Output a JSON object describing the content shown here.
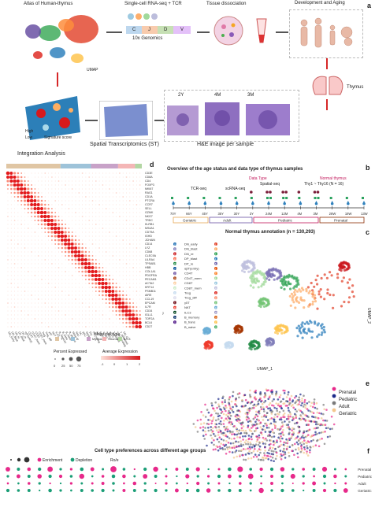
{
  "panel_labels": [
    "a",
    "b",
    "c",
    "d",
    "e",
    "f"
  ],
  "panel_a": {
    "steps": [
      {
        "id": "development",
        "label": "Development and Aging"
      },
      {
        "id": "tissue",
        "label": "Tissue dissociation"
      },
      {
        "id": "scrna",
        "label": "Single-cell RNA-seq + TCR"
      },
      {
        "id": "genomics",
        "label": "10x Genomics"
      },
      {
        "id": "atlas",
        "label": "Atlas of Human-thymus"
      },
      {
        "id": "thymus",
        "label": "Thymus"
      },
      {
        "id": "he",
        "label": "H&E image per sample"
      },
      {
        "id": "st",
        "label": "Spatial Transcriptomics (ST)"
      },
      {
        "id": "integration",
        "label": "Integration Analysis"
      }
    ],
    "he_ages": [
      "3M",
      "4M",
      "2Y"
    ],
    "vdj": [
      "C",
      "J",
      "D",
      "V"
    ],
    "umap_tag": "UMAP",
    "st_legend": {
      "title": "Signature score",
      "low": "Low",
      "high": "High"
    }
  },
  "panel_b": {
    "title": "Overview of the age status and data type of thymus samples",
    "legend": {
      "normal_thymus_title": "Normal thymus",
      "normal_thymus_note": "Thy1 ~ Thy16 (N = 16)",
      "data_type_title": "Data Type",
      "types": [
        "Spatial-seq",
        "scRNA-seq",
        "TCR-seq"
      ]
    },
    "age_groups": [
      "Prenatal",
      "Pediatric",
      "Adult",
      "Geriatric"
    ],
    "ticks": [
      "13W",
      "19W",
      "28W",
      "3M",
      "4M",
      "12M",
      "24M",
      "3Y",
      "30Y",
      "35Y",
      "45Y",
      "66Y",
      "70Y"
    ],
    "sample_spatial_counts": [
      0,
      0,
      0,
      2,
      1,
      2,
      2,
      1,
      0,
      0,
      0,
      0,
      0
    ],
    "sample_sc_counts": [
      1,
      1,
      1,
      2,
      1,
      2,
      2,
      1,
      1,
      1,
      1,
      1,
      1
    ],
    "sample_tcr_counts": [
      1,
      1,
      1,
      1,
      1,
      1,
      1,
      1,
      1,
      1,
      1,
      1,
      1
    ]
  },
  "panel_c": {
    "title": "Normal thymus annotation (n = 130,293)",
    "axis_x": "UMAP_1",
    "axis_y": "UMAP_2",
    "clusters": [
      {
        "n": "1",
        "name": "DN_early"
      },
      {
        "n": "2",
        "name": "DN_blast"
      },
      {
        "n": "3",
        "name": "DN_re"
      },
      {
        "n": "4",
        "name": "DP_blast"
      },
      {
        "n": "5",
        "name": "DP_re"
      },
      {
        "n": "6",
        "name": "αβT(entry)"
      },
      {
        "n": "7",
        "name": "CD4T"
      },
      {
        "n": "8",
        "name": "CD4T_mem"
      },
      {
        "n": "9",
        "name": "CD8T"
      },
      {
        "n": "10",
        "name": "CD8T_mem"
      },
      {
        "n": "11",
        "name": "Treg"
      },
      {
        "n": "12",
        "name": "Treg_diff"
      },
      {
        "n": "13",
        "name": "γδT"
      },
      {
        "n": "14",
        "name": "NKT"
      },
      {
        "n": "15",
        "name": "ILC3"
      },
      {
        "n": "16",
        "name": "B_memory"
      },
      {
        "n": "17",
        "name": "B_trans"
      },
      {
        "n": "18",
        "name": "B_naive"
      },
      {
        "n": "19",
        "name": "B_plasma"
      },
      {
        "n": "20",
        "name": "Mono"
      },
      {
        "n": "21",
        "name": "Mac"
      },
      {
        "n": "22",
        "name": "DC"
      },
      {
        "n": "23",
        "name": "pDC"
      },
      {
        "n": "24",
        "name": "Mast"
      },
      {
        "n": "25",
        "name": "Ery"
      },
      {
        "n": "26",
        "name": "Fb_cycling"
      },
      {
        "n": "27",
        "name": "Fb"
      },
      {
        "n": "28",
        "name": "Endo"
      },
      {
        "n": "29",
        "name": "VSMC"
      },
      {
        "n": "30",
        "name": "mTEC"
      },
      {
        "n": "31",
        "name": "cTEC"
      },
      {
        "n": "32",
        "name": "T_agonist"
      },
      {
        "n": "33",
        "name": "T_proliferating"
      },
      {
        "n": "34",
        "name": "T_apoptosis"
      },
      {
        "n": "35",
        "name": "DN_Q"
      }
    ],
    "colors": [
      "#e34a33",
      "#fdae6b",
      "#31a354",
      "#3182bd",
      "#756bb1",
      "#e6550d",
      "#fd8d3c",
      "#a1d99b",
      "#9ecae1",
      "#bcbddc",
      "#de2d26",
      "#fc9272",
      "#74c476",
      "#6baed6",
      "#9e9ac8",
      "#d95f0e",
      "#fec44f",
      "#41ab5d",
      "#2171b5",
      "#807dba",
      "#cb181d",
      "#fb6a4a",
      "#238b45",
      "#08519c",
      "#6a51a3",
      "#a63603",
      "#fdd0a2",
      "#c7e9c0",
      "#c6dbef",
      "#dadaeb",
      "#67000d",
      "#ef3b2c",
      "#00441b",
      "#08306b",
      "#3f007d"
    ]
  },
  "panel_d": {
    "genes": [
      "CD3E",
      "CD8A",
      "CD4",
      "FOXP3",
      "MKI67",
      "RAG1",
      "CD1A",
      "PTCRA",
      "CCR7",
      "SELL",
      "GZMK",
      "NKG7",
      "TRDC",
      "KLRB1",
      "MS4A1",
      "CD79A",
      "IGHD",
      "JCHAIN",
      "CD14",
      "LYZ",
      "CD68",
      "CLEC9A",
      "LILRA4",
      "TPSAB1",
      "HBB",
      "COL1A1",
      "PDGFRA",
      "PECAM1",
      "ACTA2",
      "KRT14",
      "PSMB11",
      "AIRE",
      "CCL19",
      "EPCAM",
      "IL7R",
      "CD34",
      "IGLL1",
      "TOP2A",
      "BCL6",
      "CD27"
    ],
    "major_type_title": "Major cell type",
    "major_types": [
      "T",
      "B",
      "Myeloid",
      "Stromal",
      "ILC3"
    ],
    "major_colors": [
      "#e0c6a4",
      "#9ec3d9",
      "#c8a2c8",
      "#f4b6b6",
      "#b3d6a3"
    ],
    "legend_pct_title": "Percent Expressed",
    "legend_pct": [
      "0",
      "25",
      "50",
      "75"
    ],
    "legend_expr_title": "Average Expression",
    "legend_expr_ticks": [
      "-1",
      "0",
      "1",
      "2"
    ]
  },
  "panel_e": {
    "legend": [
      "Prenatal",
      "Pediatric",
      "Adult",
      "Geriatric"
    ],
    "colors": [
      "#e7298a",
      "#1b2a8a",
      "#7a7a7a",
      "#f3c68d"
    ]
  },
  "panel_f": {
    "title": "Cell type preferences across different age groups",
    "legend_title": "Ro/e",
    "legend_items": [
      "Depletion",
      "Enrichment"
    ],
    "legend_colors": [
      "#1b9e77",
      "#e7298a"
    ],
    "size_ticks": [
      "1",
      "2",
      "3"
    ],
    "rows": [
      "Prenatal",
      "Pediatric",
      "Adult",
      "Geriatric"
    ],
    "matrix": [
      [
        2.2,
        0.4,
        1.8,
        0.3,
        2.5,
        0.6,
        1.4,
        0.2,
        1.9,
        0.7,
        2.8,
        0.5,
        1.1,
        0.3,
        2.4,
        0.8,
        1.6,
        0.4,
        2.0,
        0.9,
        1.3,
        0.2,
        2.6,
        0.5,
        1.7,
        0.3,
        2.1,
        0.6,
        1.5,
        0.4,
        2.3,
        0.7,
        1.2
      ],
      [
        0.6,
        1.9,
        0.4,
        2.1,
        0.3,
        1.7,
        0.5,
        2.4,
        0.8,
        1.5,
        0.2,
        1.8,
        0.7,
        2.2,
        0.4,
        1.3,
        0.9,
        2.0,
        0.6,
        1.4,
        0.3,
        1.9,
        0.5,
        2.5,
        0.8,
        1.6,
        0.4,
        2.3,
        0.6,
        1.2,
        0.3,
        1.8,
        0.7
      ],
      [
        1.2,
        0.8,
        1.5,
        0.6,
        1.1,
        0.9,
        1.4,
        0.7,
        1.3,
        1.6,
        0.5,
        1.2,
        1.8,
        0.6,
        1.0,
        1.4,
        0.8,
        1.1,
        1.7,
        0.7,
        1.3,
        0.9,
        1.5,
        0.6,
        1.2,
        1.6,
        0.8,
        1.0,
        1.4,
        1.9,
        0.7,
        1.1,
        1.3
      ],
      [
        0.3,
        0.5,
        0.4,
        0.9,
        0.2,
        0.6,
        0.8,
        0.4,
        0.5,
        0.3,
        0.7,
        1.6,
        0.4,
        0.5,
        0.3,
        0.6,
        1.9,
        0.4,
        0.2,
        2.1,
        0.5,
        0.3,
        0.4,
        0.8,
        2.4,
        0.6,
        0.3,
        0.5,
        0.9,
        0.4,
        1.7,
        0.3,
        2.2
      ]
    ]
  }
}
